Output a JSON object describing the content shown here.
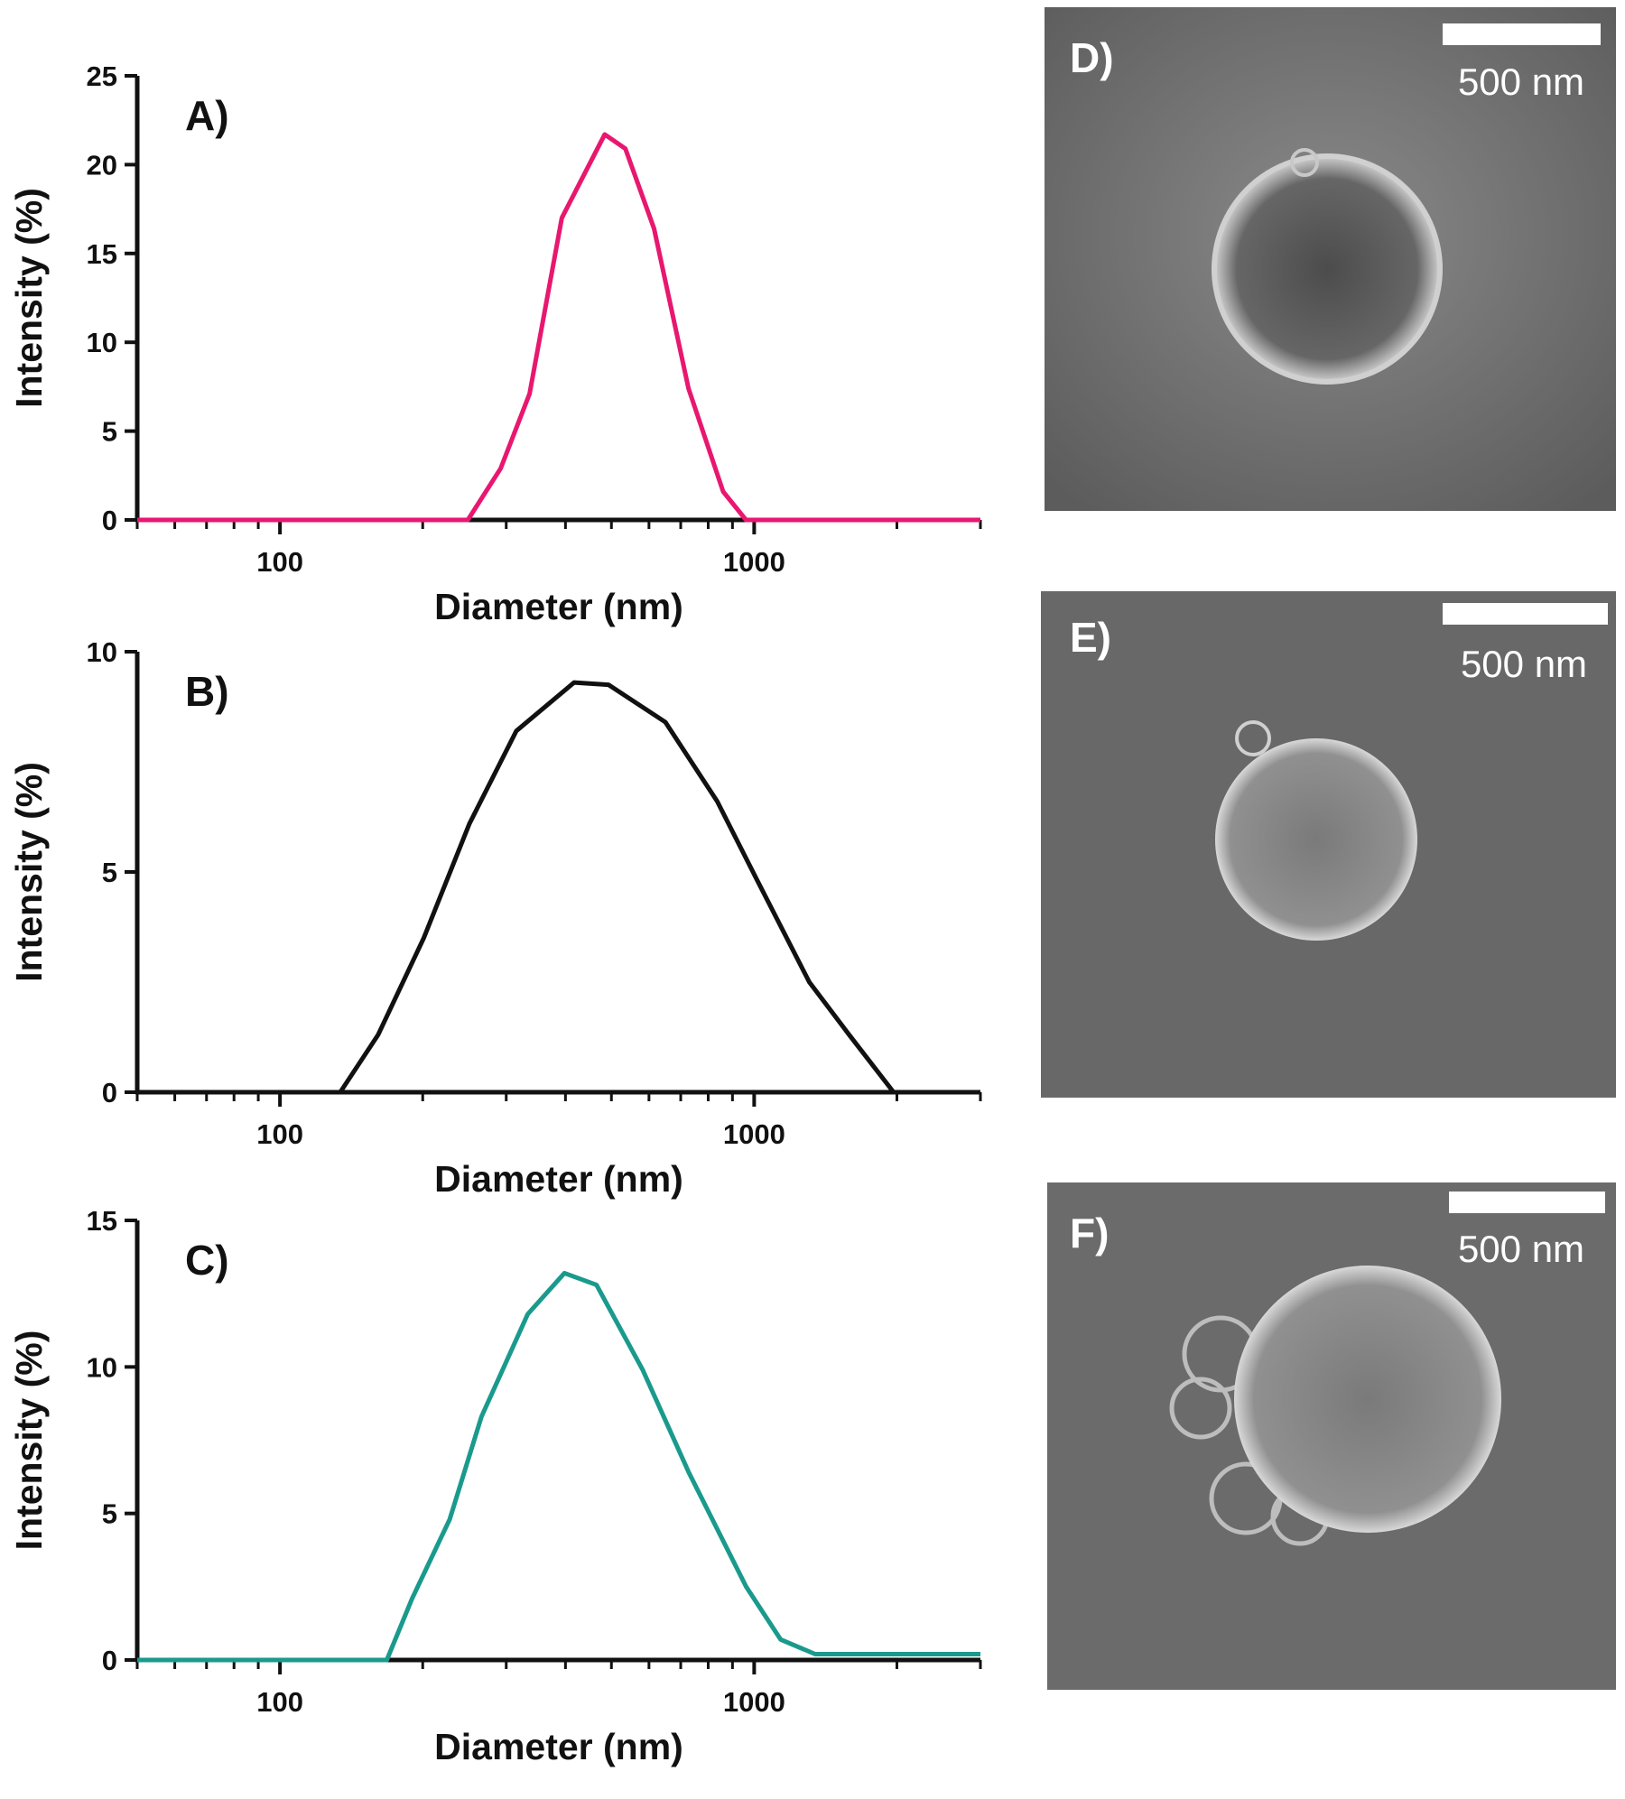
{
  "chart_data": [
    {
      "type": "line",
      "panel": "A)",
      "xlabel": "Diameter (nm)",
      "ylabel": "Intensity (%)",
      "color": "#e8176f",
      "log_x": true,
      "x": [
        50,
        249,
        292,
        336,
        393,
        484,
        535,
        615,
        727,
        860,
        961,
        3000
      ],
      "values": [
        0,
        0,
        2.9,
        7.1,
        17.0,
        21.7,
        20.9,
        16.4,
        7.4,
        1.6,
        0,
        0
      ],
      "xlim": [
        50,
        3000
      ],
      "xticks": [
        100,
        1000
      ],
      "xminorticks": [
        50,
        60,
        70,
        80,
        90,
        200,
        300,
        400,
        500,
        600,
        700,
        800,
        900,
        2000,
        3000
      ],
      "ylim": [
        0,
        25
      ],
      "yticks": [
        0,
        5,
        10,
        15,
        20,
        25
      ]
    },
    {
      "type": "line",
      "panel": "B)",
      "xlabel": "Diameter (nm)",
      "ylabel": "Intensity (%)",
      "color": "#111111",
      "log_x": true,
      "x": [
        50,
        103,
        134,
        161,
        201,
        251,
        315,
        417,
        493,
        650,
        836,
        1016,
        1307,
        1587,
        1968
      ],
      "values": [
        0,
        0,
        0,
        1.3,
        3.5,
        6.1,
        8.2,
        9.3,
        9.25,
        8.4,
        6.6,
        4.8,
        2.5,
        1.3,
        0
      ],
      "xlim": [
        50,
        3000
      ],
      "xticks": [
        100,
        1000
      ],
      "xminorticks": [
        50,
        60,
        70,
        80,
        90,
        200,
        300,
        400,
        500,
        600,
        700,
        800,
        900,
        2000,
        3000
      ],
      "ylim": [
        0,
        10
      ],
      "yticks": [
        0,
        5,
        10
      ]
    },
    {
      "type": "line",
      "panel": "C)",
      "xlabel": "Diameter (nm)",
      "ylabel": "Intensity (%)",
      "color": "#1a9a8c",
      "log_x": true,
      "x": [
        50,
        168,
        190,
        228,
        266,
        333,
        398,
        465,
        582,
        728,
        962,
        1137,
        1345,
        3000
      ],
      "values": [
        0,
        0,
        2.1,
        4.8,
        8.3,
        11.8,
        13.2,
        12.8,
        9.9,
        6.4,
        2.5,
        0.7,
        0.2,
        0.2
      ],
      "xlim": [
        50,
        3000
      ],
      "xticks": [
        100,
        1000
      ],
      "xminorticks": [
        50,
        60,
        70,
        80,
        90,
        200,
        300,
        400,
        500,
        600,
        700,
        800,
        900,
        2000,
        3000
      ],
      "ylim": [
        0,
        15
      ],
      "yticks": [
        0,
        5,
        10,
        15
      ]
    }
  ],
  "images": [
    {
      "label": "D)",
      "scale_label": "500 nm"
    },
    {
      "label": "E)",
      "scale_label": "500 nm"
    },
    {
      "label": "F)",
      "scale_label": "500 nm"
    }
  ]
}
